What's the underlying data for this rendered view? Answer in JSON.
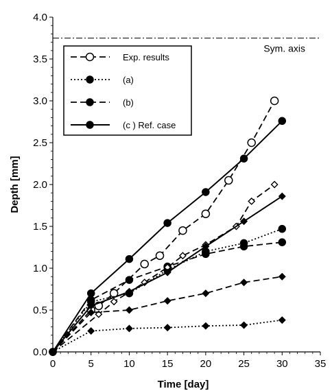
{
  "chart_data": {
    "type": "line",
    "xlabel": "Time [day]",
    "ylabel": "Depth [mm]",
    "xlim": [
      0,
      35
    ],
    "ylim": [
      0,
      4.0
    ],
    "xticks": [
      "0",
      "5",
      "10",
      "15",
      "20",
      "25",
      "30",
      "35"
    ],
    "yticks": [
      "0.0",
      "0.5",
      "1.0",
      "1.5",
      "2.0",
      "2.5",
      "3.0",
      "3.5",
      "4.0"
    ],
    "grid": false,
    "legend_position": "top-left",
    "annotations": {
      "sym_axis_label": "Sym. axis",
      "sym_axis_y": 3.75
    },
    "series": [
      {
        "name": "Exp. results",
        "style": "dashed",
        "marker": "open-circle",
        "color": "#000000",
        "x": [
          0,
          5,
          6,
          8,
          12,
          14,
          17,
          20,
          23,
          26,
          29
        ],
        "y": [
          0,
          0.5,
          0.55,
          0.7,
          1.05,
          1.15,
          1.45,
          1.65,
          2.05,
          2.5,
          3.0
        ]
      },
      {
        "name": "(a)",
        "style": "dotted",
        "marker": "filled-circle",
        "color": "#000000",
        "x": [
          0,
          5,
          10,
          15,
          20,
          25,
          30
        ],
        "y": [
          0,
          0.6,
          0.7,
          0.98,
          1.2,
          1.3,
          1.47
        ]
      },
      {
        "name": "(b)",
        "style": "dashed",
        "marker": "filled-circle",
        "color": "#000000",
        "x": [
          0,
          5,
          10,
          15,
          20,
          25,
          30
        ],
        "y": [
          0,
          0.62,
          0.86,
          1.02,
          1.17,
          1.26,
          1.31
        ]
      },
      {
        "name": "(c ) Ref. case",
        "style": "solid",
        "marker": "filled-circle",
        "color": "#000000",
        "x": [
          0,
          5,
          10,
          15,
          20,
          25,
          30
        ],
        "y": [
          0,
          0.7,
          1.11,
          1.54,
          1.91,
          2.31,
          2.76
        ]
      },
      {
        "name": "",
        "style": "dashed",
        "marker": "open-diamond",
        "color": "#000000",
        "x": [
          0,
          6,
          8,
          12,
          15,
          17,
          20,
          24,
          26,
          29
        ],
        "y": [
          0,
          0.45,
          0.6,
          0.83,
          1.01,
          1.15,
          1.28,
          1.5,
          1.8,
          2.0
        ]
      },
      {
        "name": "",
        "style": "dotted",
        "marker": "filled-diamond",
        "color": "#000000",
        "x": [
          0,
          5,
          10,
          15,
          20,
          25,
          30
        ],
        "y": [
          0,
          0.25,
          0.28,
          0.29,
          0.31,
          0.32,
          0.38
        ]
      },
      {
        "name": "",
        "style": "dashed",
        "marker": "filled-diamond",
        "color": "#000000",
        "x": [
          0,
          5,
          10,
          15,
          20,
          25,
          30
        ],
        "y": [
          0,
          0.47,
          0.5,
          0.61,
          0.7,
          0.83,
          0.9
        ]
      },
      {
        "name": "",
        "style": "solid",
        "marker": "filled-diamond",
        "color": "#000000",
        "x": [
          0,
          5,
          10,
          15,
          20,
          25,
          30
        ],
        "y": [
          0,
          0.55,
          0.72,
          0.95,
          1.26,
          1.56,
          1.86
        ]
      }
    ]
  }
}
